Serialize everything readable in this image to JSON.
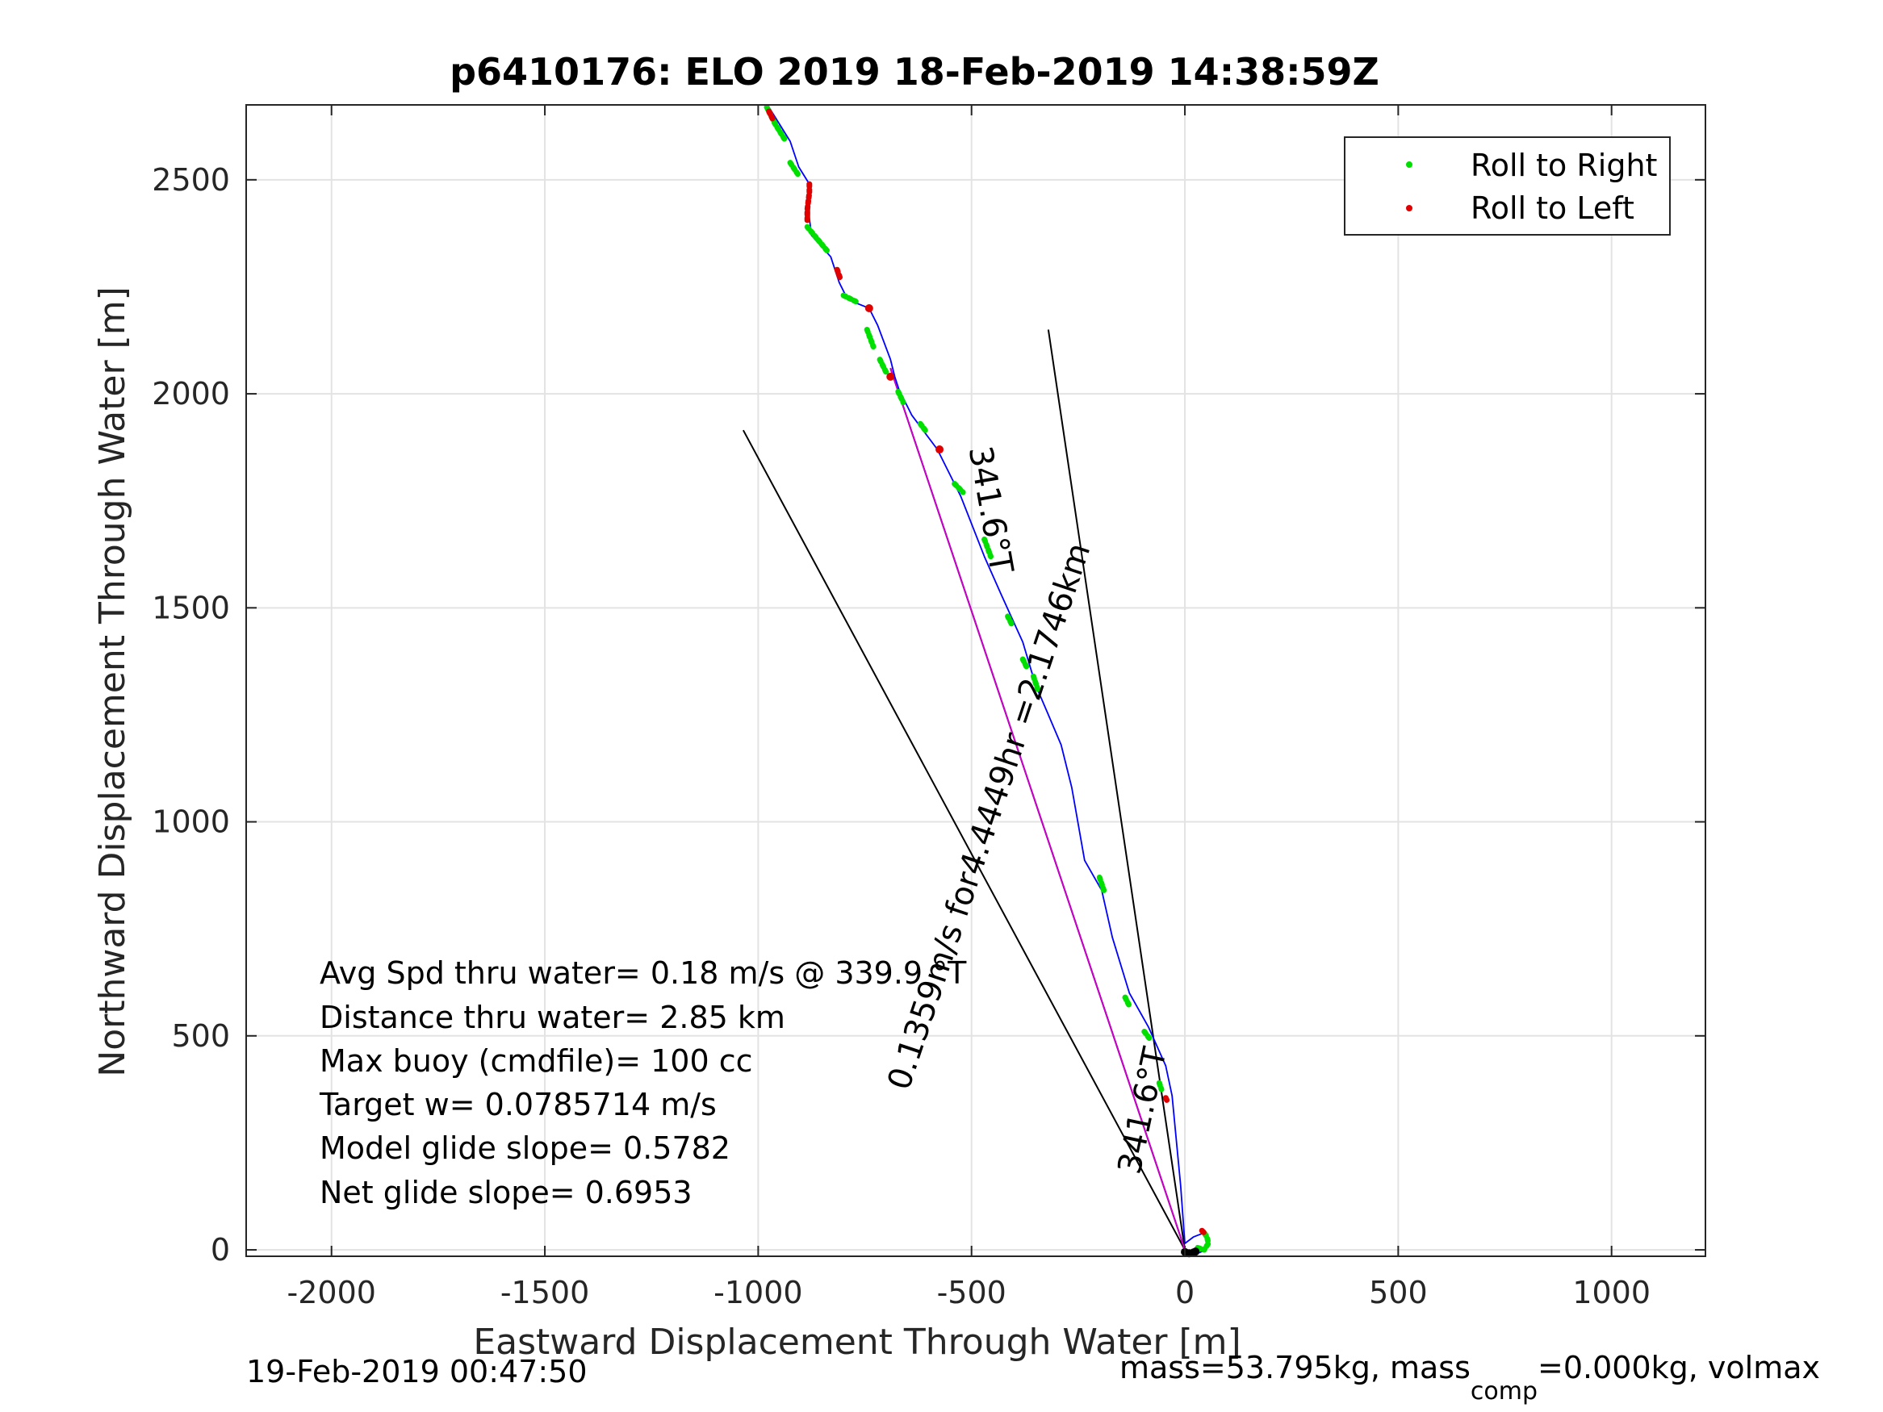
{
  "chart_data": {
    "type": "scatter",
    "title": "p6410176: ELO 2019 18-Feb-2019 14:38:59Z",
    "xlabel": "Eastward Displacement Through Water [m]",
    "ylabel": "Northward Displacement Through Water [m]",
    "xlim": [
      -2200,
      1220
    ],
    "ylim": [
      -15,
      2675
    ],
    "xticks": [
      -2000,
      -1500,
      -1000,
      -500,
      0,
      500,
      1000
    ],
    "yticks": [
      0,
      500,
      1000,
      1500,
      2000,
      2500
    ],
    "xtick_labels": [
      "-2000",
      "-1500",
      "-1000",
      "-500",
      "0",
      "500",
      "1000"
    ],
    "ytick_labels": [
      "0",
      "500",
      "1000",
      "1500",
      "2000",
      "2500"
    ],
    "grid": true,
    "legend_position": "top-right",
    "legend": [
      {
        "name": "Roll to Right",
        "color": "#00e000"
      },
      {
        "name": "Roll to Left",
        "color": "#e00000"
      }
    ],
    "colors": {
      "track": "#0000ff",
      "mean_heading": "#cc00cc",
      "bounds": "#000000",
      "roll_right": "#00e000",
      "roll_left": "#e00000"
    },
    "track": [
      [
        0,
        0
      ],
      [
        15,
        -5
      ],
      [
        30,
        -8
      ],
      [
        45,
        -2
      ],
      [
        55,
        15
      ],
      [
        52,
        30
      ],
      [
        40,
        38
      ],
      [
        20,
        30
      ],
      [
        0,
        15
      ],
      [
        -10,
        150
      ],
      [
        -30,
        360
      ],
      [
        -45,
        430
      ],
      [
        -85,
        520
      ],
      [
        -130,
        600
      ],
      [
        -170,
        730
      ],
      [
        -195,
        840
      ],
      [
        -235,
        910
      ],
      [
        -265,
        1080
      ],
      [
        -290,
        1180
      ],
      [
        -320,
        1250
      ],
      [
        -350,
        1320
      ],
      [
        -380,
        1420
      ],
      [
        -430,
        1530
      ],
      [
        -470,
        1620
      ],
      [
        -525,
        1760
      ],
      [
        -580,
        1870
      ],
      [
        -640,
        1950
      ],
      [
        -670,
        2010
      ],
      [
        -680,
        2040
      ],
      [
        -690,
        2080
      ],
      [
        -720,
        2160
      ],
      [
        -740,
        2200
      ],
      [
        -790,
        2220
      ],
      [
        -810,
        2260
      ],
      [
        -830,
        2320
      ],
      [
        -875,
        2370
      ],
      [
        -880,
        2410
      ],
      [
        -880,
        2490
      ],
      [
        -905,
        2530
      ],
      [
        -925,
        2590
      ],
      [
        -950,
        2630
      ],
      [
        -975,
        2670
      ]
    ],
    "roll_right_segments": [
      [
        [
          -980,
          2670
        ],
        [
          -960,
          2630
        ],
        [
          -935,
          2590
        ]
      ],
      [
        [
          -925,
          2540
        ],
        [
          -905,
          2510
        ]
      ],
      [
        [
          -885,
          2390
        ],
        [
          -860,
          2360
        ],
        [
          -835,
          2330
        ]
      ],
      [
        [
          -800,
          2230
        ],
        [
          -770,
          2215
        ]
      ],
      [
        [
          -745,
          2150
        ],
        [
          -730,
          2110
        ]
      ],
      [
        [
          -715,
          2080
        ],
        [
          -700,
          2050
        ]
      ],
      [
        [
          -672,
          2005
        ],
        [
          -660,
          1980
        ]
      ],
      [
        [
          -620,
          1930
        ],
        [
          -605,
          1910
        ]
      ],
      [
        [
          -540,
          1790
        ],
        [
          -520,
          1770
        ]
      ],
      [
        [
          -470,
          1660
        ],
        [
          -455,
          1620
        ]
      ],
      [
        [
          -415,
          1480
        ],
        [
          -405,
          1460
        ]
      ],
      [
        [
          -380,
          1380
        ],
        [
          -370,
          1360
        ]
      ],
      [
        [
          -355,
          1340
        ],
        [
          -345,
          1310
        ]
      ],
      [
        [
          -200,
          870
        ],
        [
          -190,
          840
        ]
      ],
      [
        [
          -140,
          590
        ],
        [
          -130,
          570
        ]
      ],
      [
        [
          -95,
          510
        ],
        [
          -80,
          490
        ]
      ],
      [
        [
          -60,
          390
        ],
        [
          -55,
          375
        ]
      ],
      [
        [
          30,
          5
        ],
        [
          45,
          0
        ],
        [
          55,
          15
        ],
        [
          52,
          30
        ],
        [
          45,
          40
        ]
      ]
    ],
    "roll_left_segments": [
      [
        [
          -975,
          2660
        ],
        [
          -965,
          2640
        ]
      ],
      [
        [
          -880,
          2490
        ],
        [
          -880,
          2470
        ],
        [
          -885,
          2430
        ],
        [
          -885,
          2400
        ]
      ],
      [
        [
          -815,
          2290
        ],
        [
          -808,
          2270
        ]
      ],
      [
        [
          -740,
          2200
        ]
      ],
      [
        [
          -690,
          2040
        ]
      ],
      [
        [
          -575,
          1870
        ]
      ],
      [
        [
          -45,
          355
        ],
        [
          -40,
          345
        ]
      ],
      [
        [
          40,
          45
        ],
        [
          45,
          40
        ]
      ]
    ],
    "black_start_points": [
      [
        0,
        -5
      ],
      [
        10,
        -8
      ],
      [
        20,
        -6
      ],
      [
        25,
        -4
      ]
    ],
    "mean_heading_line": [
      [
        0,
        0
      ],
      [
        -690,
        2060
      ]
    ],
    "bound_lines": [
      [
        [
          0,
          0
        ],
        [
          -1035,
          1915
        ]
      ],
      [
        [
          0,
          0
        ],
        [
          -320,
          2150
        ]
      ]
    ],
    "annotations": [
      {
        "text": "341.6°T",
        "x": -480,
        "y": 1725,
        "rotate": 80
      },
      {
        "text": "0.1359m/s for4.4449hr =2.1746km",
        "x": -435,
        "y": 1005,
        "rotate": -71.5
      },
      {
        "text": "341.6°T",
        "x": -75,
        "y": 320,
        "rotate": -78
      }
    ],
    "info_lines": [
      "Avg Spd thru water=  0.18 m/s @ 339.9 °T",
      "Distance thru water=  2.85 km",
      "Max buoy (cmdfile)= 100 cc",
      "Target w= 0.0785714 m/s",
      "Model glide slope= 0.5782",
      "Net glide slope= 0.6953"
    ],
    "footer_left": "19-Feb-2019 00:47:50",
    "footer_right": {
      "prefix": "mass=53.795kg, mass",
      "subscript": "comp",
      "suffix": "=0.000kg, volmax"
    }
  }
}
